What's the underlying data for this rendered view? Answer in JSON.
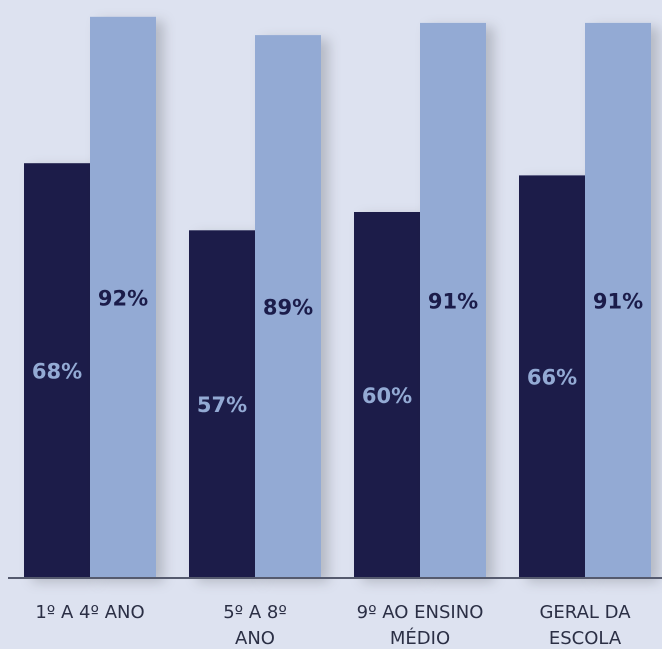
{
  "chart_data": {
    "type": "bar",
    "title": "",
    "xlabel": "",
    "ylabel": "",
    "ylim": [
      0,
      100
    ],
    "grid": false,
    "legend": "none",
    "categories": [
      [
        "1º A 4º ANO"
      ],
      [
        "5º A 8º",
        "ANO"
      ],
      [
        "9º AO ENSINO",
        "MÉDIO"
      ],
      [
        "GERAL DA",
        "ESCOLA"
      ]
    ],
    "series": [
      {
        "values": [
          68,
          57,
          60,
          66
        ],
        "labels": [
          "68%",
          "57%",
          "60%",
          "66%"
        ],
        "color": "#1b1c4a",
        "label_color": "#93aad4"
      },
      {
        "values": [
          92,
          89,
          91,
          91
        ],
        "labels": [
          "92%",
          "89%",
          "91%",
          "91%"
        ],
        "color": "#93aad4",
        "label_color": "#1b1c4a"
      }
    ],
    "background": "#dde2f0",
    "axis_color": "#555a6e"
  }
}
